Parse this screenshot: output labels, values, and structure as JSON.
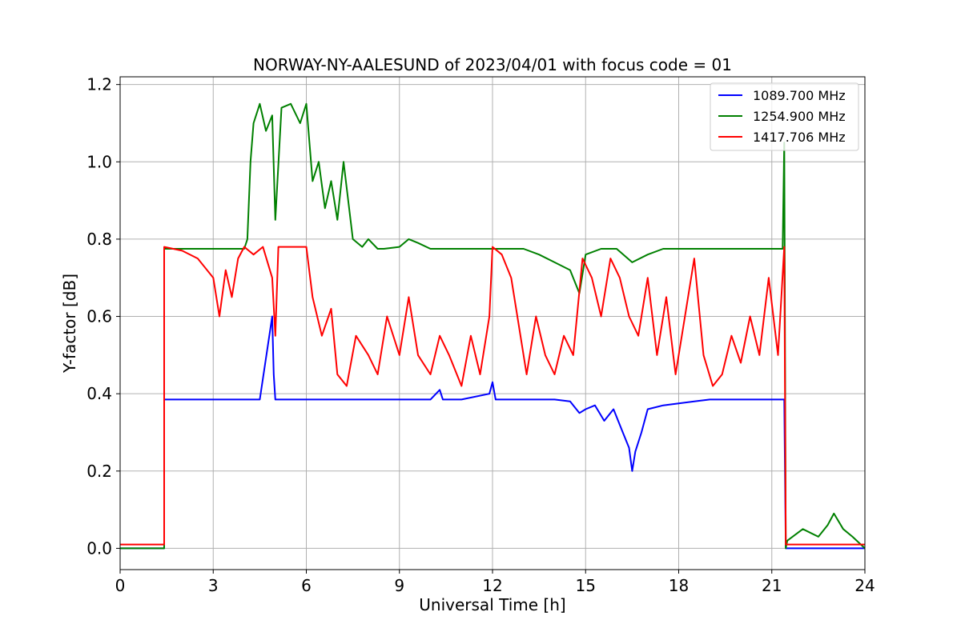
{
  "chart_data": {
    "type": "line",
    "title": "NORWAY-NY-AALESUND of 2023/04/01 with focus code = 01",
    "xlabel": "Universal Time [h]",
    "ylabel": "Y-factor [dB]",
    "xlim": [
      0,
      24
    ],
    "ylim": [
      -0.055,
      1.22
    ],
    "xticks": [
      0,
      3,
      6,
      9,
      12,
      15,
      18,
      21,
      24
    ],
    "yticks": [
      0.0,
      0.2,
      0.4,
      0.6,
      0.8,
      1.0,
      1.2
    ],
    "ytick_labels": [
      "0.0",
      "0.2",
      "0.4",
      "0.6",
      "0.8",
      "1.0",
      "1.2"
    ],
    "grid": true,
    "legend_position": "top-right",
    "series": [
      {
        "name": "1089.700 MHz",
        "color": "#0000ff",
        "x": [
          0,
          1.42,
          1.42,
          1.5,
          2.0,
          3.0,
          4.0,
          4.5,
          4.9,
          4.95,
          5.0,
          5.1,
          6.0,
          7.0,
          8.0,
          9.0,
          10.0,
          10.3,
          10.4,
          11.0,
          11.9,
          12.0,
          12.1,
          12.2,
          13.0,
          14.0,
          14.5,
          14.8,
          15.0,
          15.3,
          15.6,
          15.9,
          16.2,
          16.4,
          16.5,
          16.6,
          16.8,
          17.0,
          17.5,
          18.0,
          18.5,
          19.0,
          20.0,
          21.0,
          21.4,
          21.45,
          22.0,
          23.0,
          24.0
        ],
        "y": [
          0.0,
          0.0,
          0.385,
          0.385,
          0.385,
          0.385,
          0.385,
          0.385,
          0.6,
          0.45,
          0.385,
          0.385,
          0.385,
          0.385,
          0.385,
          0.385,
          0.385,
          0.41,
          0.385,
          0.385,
          0.4,
          0.43,
          0.385,
          0.385,
          0.385,
          0.385,
          0.38,
          0.35,
          0.36,
          0.37,
          0.33,
          0.36,
          0.3,
          0.26,
          0.2,
          0.25,
          0.3,
          0.36,
          0.37,
          0.375,
          0.38,
          0.385,
          0.385,
          0.385,
          0.385,
          0.0,
          0.0,
          0.0,
          0.0
        ]
      },
      {
        "name": "1254.900 MHz",
        "color": "#008000",
        "x": [
          0,
          1.42,
          1.42,
          3.0,
          4.0,
          4.1,
          4.2,
          4.3,
          4.5,
          4.7,
          4.9,
          5.0,
          5.2,
          5.5,
          5.8,
          6.0,
          6.2,
          6.4,
          6.6,
          6.8,
          7.0,
          7.2,
          7.5,
          7.8,
          8.0,
          8.3,
          8.5,
          9.0,
          9.3,
          9.6,
          10.0,
          10.5,
          11.0,
          12.0,
          13.0,
          13.5,
          14.0,
          14.5,
          14.8,
          15.0,
          15.5,
          16.0,
          16.5,
          17.0,
          17.5,
          18.0,
          18.5,
          19.0,
          20.0,
          21.0,
          21.35,
          21.4,
          21.45,
          21.5,
          22.0,
          22.5,
          22.8,
          23.0,
          23.3,
          23.6,
          24.0
        ],
        "y": [
          0.0,
          0.0,
          0.775,
          0.775,
          0.775,
          0.8,
          1.0,
          1.1,
          1.15,
          1.08,
          1.12,
          0.85,
          1.14,
          1.15,
          1.1,
          1.15,
          0.95,
          1.0,
          0.88,
          0.95,
          0.85,
          1.0,
          0.8,
          0.78,
          0.8,
          0.775,
          0.775,
          0.78,
          0.8,
          0.79,
          0.775,
          0.775,
          0.775,
          0.775,
          0.775,
          0.76,
          0.74,
          0.72,
          0.66,
          0.76,
          0.775,
          0.775,
          0.74,
          0.76,
          0.775,
          0.775,
          0.775,
          0.775,
          0.775,
          0.775,
          0.775,
          1.05,
          0.0,
          0.02,
          0.05,
          0.03,
          0.06,
          0.09,
          0.05,
          0.03,
          0.0
        ]
      },
      {
        "name": "1417.706 MHz",
        "color": "#ff0000",
        "x": [
          0,
          1.42,
          1.42,
          2.0,
          2.5,
          3.0,
          3.2,
          3.4,
          3.6,
          3.8,
          4.0,
          4.3,
          4.6,
          4.9,
          5.0,
          5.1,
          5.5,
          6.0,
          6.2,
          6.5,
          6.8,
          7.0,
          7.3,
          7.6,
          8.0,
          8.3,
          8.6,
          9.0,
          9.3,
          9.6,
          10.0,
          10.3,
          10.6,
          11.0,
          11.3,
          11.6,
          11.9,
          12.0,
          12.3,
          12.6,
          12.9,
          13.1,
          13.4,
          13.7,
          14.0,
          14.3,
          14.6,
          14.9,
          15.2,
          15.5,
          15.8,
          16.1,
          16.4,
          16.7,
          17.0,
          17.3,
          17.6,
          17.9,
          18.2,
          18.5,
          18.8,
          19.1,
          19.4,
          19.7,
          20.0,
          20.3,
          20.6,
          20.9,
          21.2,
          21.4,
          21.45,
          22.0,
          23.0,
          24.0
        ],
        "y": [
          0.01,
          0.01,
          0.78,
          0.77,
          0.75,
          0.7,
          0.6,
          0.72,
          0.65,
          0.75,
          0.78,
          0.76,
          0.78,
          0.7,
          0.55,
          0.78,
          0.78,
          0.78,
          0.65,
          0.55,
          0.62,
          0.45,
          0.42,
          0.55,
          0.5,
          0.45,
          0.6,
          0.5,
          0.65,
          0.5,
          0.45,
          0.55,
          0.5,
          0.42,
          0.55,
          0.45,
          0.6,
          0.78,
          0.76,
          0.7,
          0.55,
          0.45,
          0.6,
          0.5,
          0.45,
          0.55,
          0.5,
          0.75,
          0.7,
          0.6,
          0.75,
          0.7,
          0.6,
          0.55,
          0.7,
          0.5,
          0.65,
          0.45,
          0.6,
          0.75,
          0.5,
          0.42,
          0.45,
          0.55,
          0.48,
          0.6,
          0.5,
          0.7,
          0.5,
          0.78,
          0.01,
          0.01,
          0.01,
          0.01
        ]
      }
    ]
  }
}
